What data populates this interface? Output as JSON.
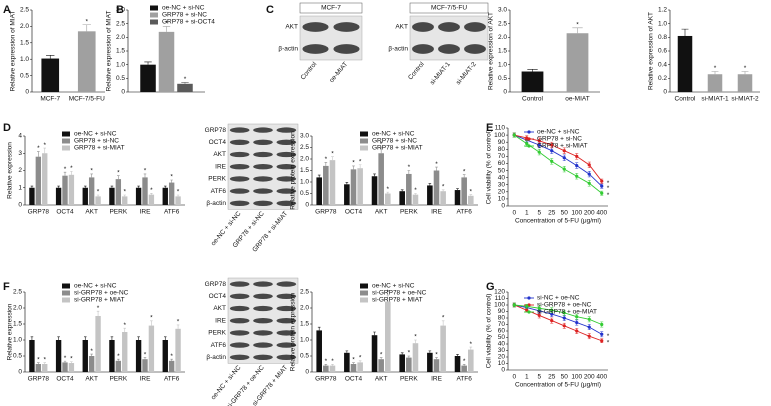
{
  "panel_labels": [
    "A",
    "B",
    "C",
    "D",
    "E",
    "F",
    "G"
  ],
  "blots": [
    {
      "header": "MCF-7",
      "rows": [
        "AKT",
        "β-actin"
      ],
      "lanes": [
        "Control",
        "oe-MIAT"
      ]
    },
    {
      "header": "MCF-7/5-FU",
      "rows": [
        "AKT",
        "β-actin"
      ],
      "lanes": [
        "Control",
        "si-MIAT-1",
        "si-MIAT-2"
      ]
    },
    {
      "rows": [
        "GRP78",
        "OCT4",
        "AKT",
        "IRE",
        "PERK",
        "ATF6",
        "β-actin"
      ],
      "lanes": [
        "oe-NC + si-NC",
        "GRP78 + si-NC",
        "GRP78 + si-MIAT"
      ]
    },
    {
      "rows": [
        "GRP78",
        "OCT4",
        "AKT",
        "IRE",
        "PERK",
        "ATF6",
        "β-actin"
      ],
      "lanes": [
        "oe-NC + si-NC",
        "si-GRP78 + oe-NC",
        "si-GRP78 + MIAT"
      ]
    }
  ],
  "chart_data": [
    {
      "type": "bar",
      "ylabel": "Relative expression of MIAT",
      "categories": [
        "MCF-7",
        "MCF-7/5-FU"
      ],
      "ylim": [
        0,
        2.5
      ],
      "yticks": [
        0,
        0.5,
        {
          "value": 1,
          "label": "1.0"
        },
        1.5,
        {
          "value": 2,
          "label": "2.0"
        },
        2.5
      ],
      "series": [
        {
          "colors": [
            "#111111",
            "#a0a0a0"
          ],
          "values": [
            1.02,
            1.85
          ],
          "errors": [
            0.1,
            0.2
          ],
          "stars": [
            null,
            "*"
          ]
        }
      ]
    },
    {
      "type": "bar",
      "ylabel": "Relative expression of MIAT",
      "categories": [
        null
      ],
      "ylim": [
        0,
        3
      ],
      "yticks": [
        0,
        0.5,
        {
          "value": 1,
          "label": "1.0"
        },
        1.5,
        {
          "value": 2,
          "label": "2.0"
        },
        2.5,
        {
          "value": 3,
          "label": "3.0"
        }
      ],
      "series": [
        {
          "name": "oe-NC + si-NC",
          "color": "#111111",
          "values": [
            1.0
          ],
          "errors": [
            0.1
          ],
          "stars": [
            null
          ]
        },
        {
          "name": "GRP78 + si-NC",
          "color": "#a0a0a0",
          "values": [
            2.2
          ],
          "errors": [
            0.2
          ],
          "stars": [
            "*"
          ]
        },
        {
          "name": "GRP78 + si-OCT4",
          "color": "#5a5a5a",
          "values": [
            0.3
          ],
          "errors": [
            0.05
          ],
          "stars": [
            "*"
          ]
        }
      ]
    },
    {
      "type": "bar",
      "ylabel": "Relative expression of AKT",
      "categories": [
        "Control",
        "oe-MIAT"
      ],
      "ylim": [
        0,
        3
      ],
      "yticks": [
        0,
        0.5,
        {
          "value": 1,
          "label": "1.0"
        },
        1.5,
        {
          "value": 2,
          "label": "2.0"
        },
        2.5,
        {
          "value": 3,
          "label": "3.0"
        }
      ],
      "series": [
        {
          "colors": [
            "#111111",
            "#a0a0a0"
          ],
          "values": [
            0.75,
            2.15
          ],
          "errors": [
            0.08,
            0.2
          ],
          "stars": [
            null,
            "*"
          ]
        }
      ]
    },
    {
      "type": "bar",
      "ylabel": "Relative expression of AKT",
      "categories": [
        "Control",
        "si-MIAT-1",
        "si-MIAT-2"
      ],
      "ylim": [
        0,
        1.2
      ],
      "yticks": [
        0,
        0.2,
        0.4,
        0.6,
        0.8,
        {
          "value": 1,
          "label": "1.0"
        },
        1.2
      ],
      "series": [
        {
          "colors": [
            "#111111",
            "#a0a0a0",
            "#a0a0a0"
          ],
          "values": [
            0.82,
            0.26,
            0.26
          ],
          "errors": [
            0.1,
            0.04,
            0.04
          ],
          "stars": [
            null,
            "*",
            "*"
          ]
        }
      ]
    },
    {
      "type": "bar",
      "ylabel": "Relative expression",
      "categories": [
        "GRP78",
        "OCT4",
        "AKT",
        "PERK",
        "IRE",
        "ATF6"
      ],
      "ylim": [
        0,
        4
      ],
      "yticks": [
        0,
        1,
        2,
        3,
        4
      ],
      "series": [
        {
          "name": "oe-NC + si-NC",
          "color": "#111111",
          "values": [
            1,
            1,
            1,
            1,
            1,
            1
          ],
          "errors": [
            0.1,
            0.1,
            0.1,
            0.1,
            0.1,
            0.1
          ],
          "stars": [
            null,
            null,
            null,
            null,
            null,
            null
          ]
        },
        {
          "name": "GRP78 + si-NC",
          "color": "#8c8c8c",
          "values": [
            2.8,
            1.7,
            1.6,
            1.5,
            1.6,
            1.3
          ],
          "errors": [
            0.3,
            0.2,
            0.2,
            0.2,
            0.2,
            0.15
          ],
          "stars": [
            "*",
            "*",
            "*",
            "*",
            "*",
            "*"
          ]
        },
        {
          "name": "GRP78 + si-MIAT",
          "color": "#c4c4c4",
          "values": [
            3.0,
            1.75,
            0.5,
            0.5,
            0.6,
            0.5
          ],
          "errors": [
            0.3,
            0.2,
            0.08,
            0.08,
            0.08,
            0.08
          ],
          "stars": [
            "*",
            "*",
            "*",
            "*",
            "*",
            "*"
          ]
        }
      ]
    },
    {
      "type": "bar",
      "ylabel": "Relative protein expression",
      "categories": [
        "GRP78",
        "OCT4",
        "AKT",
        "PERK",
        "IRE",
        "ATF6"
      ],
      "ylim": [
        0,
        3
      ],
      "yticks": [
        0,
        0.5,
        {
          "value": 1,
          "label": "1.0"
        },
        1.5,
        {
          "value": 2,
          "label": "2.0"
        },
        2.5,
        {
          "value": 3,
          "label": "3.0"
        }
      ],
      "series": [
        {
          "name": "oe-NC + si-NC",
          "color": "#111111",
          "values": [
            1.2,
            0.9,
            1.25,
            0.6,
            0.85,
            0.65
          ],
          "errors": [
            0.1,
            0.08,
            0.1,
            0.06,
            0.08,
            0.06
          ],
          "stars": [
            null,
            null,
            null,
            null,
            null,
            null
          ]
        },
        {
          "name": "GRP78 + si-NC",
          "color": "#8c8c8c",
          "values": [
            1.7,
            1.55,
            2.25,
            1.35,
            1.5,
            1.2
          ],
          "errors": [
            0.15,
            0.15,
            0.25,
            0.15,
            0.15,
            0.12
          ],
          "stars": [
            "*",
            "*",
            "*",
            "*",
            "*",
            "*"
          ]
        },
        {
          "name": "GRP78 + si-MIAT",
          "color": "#c4c4c4",
          "values": [
            1.95,
            1.6,
            0.5,
            0.45,
            0.6,
            0.4
          ],
          "errors": [
            0.15,
            0.15,
            0.06,
            0.05,
            0.06,
            0.05
          ],
          "stars": [
            "*",
            "*",
            "*",
            "*",
            "*",
            "*"
          ]
        }
      ]
    },
    {
      "type": "line",
      "ylabel": "Cell viability (% of control)",
      "xlabel": "Concentration of 5-FU (μg/ml)",
      "categories": [
        "0",
        "1",
        "5",
        "25",
        "50",
        "100",
        "200",
        "400"
      ],
      "ylim": [
        0,
        110
      ],
      "yticks": [
        0,
        10,
        20,
        30,
        40,
        50,
        60,
        70,
        80,
        90,
        100,
        110
      ],
      "series": [
        {
          "name": "oe-NC + si-NC",
          "color": "#2233cc",
          "values": [
            100,
            93,
            86,
            78,
            68,
            57,
            45,
            28
          ],
          "errors": [
            3,
            3,
            4,
            4,
            4,
            4,
            4,
            3
          ],
          "stars": [
            null,
            null,
            null,
            null,
            null,
            null,
            null,
            "*"
          ]
        },
        {
          "name": "GRP78 + si-NC",
          "color": "#dd2222",
          "values": [
            100,
            96,
            92,
            86,
            78,
            70,
            58,
            35
          ],
          "errors": [
            3,
            3,
            4,
            4,
            4,
            4,
            4,
            3
          ],
          "stars": [
            null,
            null,
            null,
            null,
            null,
            null,
            null,
            "*"
          ]
        },
        {
          "name": "GRP78 + si-MIAT",
          "color": "#33cc33",
          "values": [
            100,
            88,
            76,
            63,
            52,
            42,
            32,
            18
          ],
          "errors": [
            3,
            4,
            4,
            4,
            4,
            4,
            4,
            3
          ],
          "stars": [
            null,
            null,
            null,
            null,
            null,
            null,
            null,
            "*"
          ]
        }
      ]
    },
    {
      "type": "bar",
      "ylabel": "Relative expression",
      "categories": [
        "GRP78",
        "OCT4",
        "AKT",
        "PERK",
        "IRE",
        "ATF6"
      ],
      "ylim": [
        0,
        2.5
      ],
      "yticks": [
        0,
        0.5,
        {
          "value": 1,
          "label": "1.0"
        },
        1.5,
        {
          "value": 2,
          "label": "2.0"
        },
        2.5
      ],
      "series": [
        {
          "name": "oe-NC + si-NC",
          "color": "#111111",
          "values": [
            1,
            1,
            1,
            1,
            1,
            1
          ],
          "errors": [
            0.1,
            0.1,
            0.1,
            0.1,
            0.1,
            0.1
          ],
          "stars": [
            null,
            null,
            null,
            null,
            null,
            null
          ]
        },
        {
          "name": "si-GRP78 + oe-NC",
          "color": "#8c8c8c",
          "values": [
            0.25,
            0.3,
            0.5,
            0.35,
            0.4,
            0.35
          ],
          "errors": [
            0.04,
            0.04,
            0.06,
            0.05,
            0.05,
            0.05
          ],
          "stars": [
            "*",
            "*",
            "*",
            "*",
            "*",
            "*"
          ]
        },
        {
          "name": "si-GRP78 + MIAT",
          "color": "#c4c4c4",
          "values": [
            0.25,
            0.28,
            1.75,
            1.25,
            1.45,
            1.35
          ],
          "errors": [
            0.04,
            0.04,
            0.15,
            0.12,
            0.15,
            0.12
          ],
          "stars": [
            "*",
            "*",
            "*",
            "*",
            "*",
            "*"
          ]
        }
      ]
    },
    {
      "type": "bar",
      "ylabel": "Relative protein expression",
      "categories": [
        "GRP78",
        "OCT4",
        "AKT",
        "PERK",
        "IRE",
        "ATF6"
      ],
      "ylim": [
        0,
        2.5
      ],
      "yticks": [
        0,
        0.5,
        {
          "value": 1,
          "label": "1.0"
        },
        1.5,
        {
          "value": 2,
          "label": "2.0"
        },
        2.5
      ],
      "series": [
        {
          "name": "oe-NC + si-NC",
          "color": "#111111",
          "values": [
            1.3,
            0.6,
            1.15,
            0.55,
            0.6,
            0.5
          ],
          "errors": [
            0.1,
            0.06,
            0.1,
            0.05,
            0.06,
            0.05
          ],
          "stars": [
            null,
            null,
            null,
            null,
            null,
            null
          ]
        },
        {
          "name": "si-GRP78 + oe-NC",
          "color": "#8c8c8c",
          "values": [
            0.2,
            0.25,
            0.4,
            0.45,
            0.4,
            0.2
          ],
          "errors": [
            0.04,
            0.04,
            0.05,
            0.05,
            0.05,
            0.04
          ],
          "stars": [
            "*",
            "*",
            "*",
            "*",
            "*",
            "*"
          ]
        },
        {
          "name": "si-GRP78 + MIAT",
          "color": "#c4c4c4",
          "values": [
            0.2,
            0.3,
            2.2,
            0.9,
            1.45,
            0.7
          ],
          "errors": [
            0.04,
            0.05,
            0.2,
            0.1,
            0.15,
            0.08
          ],
          "stars": [
            "*",
            "*",
            "*",
            "*",
            "*",
            "*"
          ]
        }
      ]
    },
    {
      "type": "line",
      "ylabel": "Cell viability (% of control)",
      "xlabel": "Concentration of 5-FU (μg/ml)",
      "categories": [
        "0",
        "1",
        "5",
        "25",
        "50",
        "100",
        "200",
        "400"
      ],
      "ylim": [
        0,
        120
      ],
      "yticks": [
        0,
        10,
        20,
        30,
        40,
        50,
        60,
        70,
        80,
        90,
        100,
        110,
        120
      ],
      "series": [
        {
          "name": "si-NC + oe-NC",
          "color": "#2233cc",
          "values": [
            100,
            96,
            91,
            86,
            80,
            73,
            66,
            55
          ],
          "errors": [
            3,
            3,
            4,
            4,
            4,
            4,
            4,
            4
          ],
          "stars": [
            null,
            null,
            null,
            null,
            null,
            null,
            null,
            "*"
          ]
        },
        {
          "name": "si-GRP78 + oe-NC",
          "color": "#dd2222",
          "values": [
            100,
            92,
            84,
            76,
            68,
            60,
            52,
            45
          ],
          "errors": [
            3,
            3,
            4,
            4,
            4,
            4,
            4,
            3
          ],
          "stars": [
            null,
            null,
            null,
            null,
            null,
            null,
            null,
            "*"
          ]
        },
        {
          "name": "si-GRP78 + oe-MIAT",
          "color": "#33cc33",
          "values": [
            100,
            98,
            95,
            92,
            88,
            82,
            78,
            70
          ],
          "errors": [
            3,
            3,
            4,
            4,
            4,
            4,
            4,
            4
          ],
          "stars": [
            null,
            null,
            null,
            null,
            null,
            null,
            null,
            null
          ]
        }
      ]
    }
  ]
}
